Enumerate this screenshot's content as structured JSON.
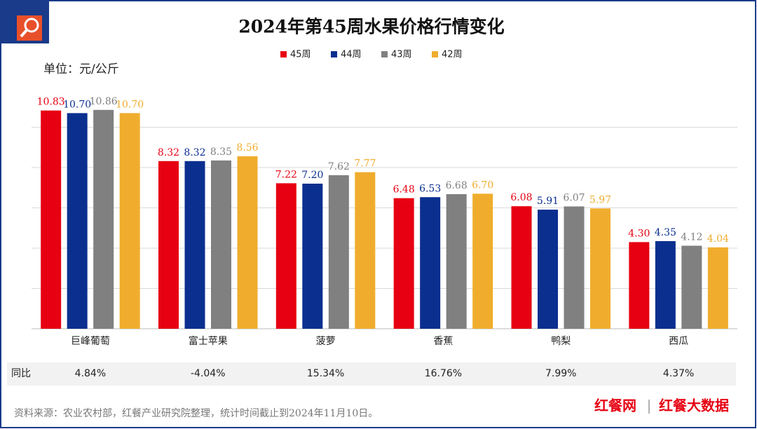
{
  "chart_data": {
    "type": "bar",
    "title": "2024年第45周水果价格行情变化",
    "unit": "单位：元/公斤",
    "categories": [
      "巨峰葡萄",
      "富士苹果",
      "菠萝",
      "香蕉",
      "鸭梨",
      "西瓜"
    ],
    "series": [
      {
        "name": "45周",
        "color": "#e60012",
        "values": [
          10.83,
          8.32,
          7.22,
          6.48,
          6.08,
          4.3
        ],
        "value_labels": [
          "10.83",
          "8.32",
          "7.22",
          "6.48",
          "6.08",
          "4.30"
        ]
      },
      {
        "name": "44周",
        "color": "#0a2f8f",
        "values": [
          10.7,
          8.32,
          7.2,
          6.53,
          5.91,
          4.35
        ],
        "value_labels": [
          "10.70",
          "8.32",
          "7.20",
          "6.53",
          "5.91",
          "4.35"
        ]
      },
      {
        "name": "43周",
        "color": "#808080",
        "values": [
          10.86,
          8.35,
          7.62,
          6.68,
          6.07,
          4.12
        ],
        "value_labels": [
          "10.86",
          "8.35",
          "7.62",
          "6.68",
          "6.07",
          "4.12"
        ]
      },
      {
        "name": "42周",
        "color": "#f0ad2d",
        "values": [
          10.7,
          8.56,
          7.77,
          6.7,
          5.97,
          4.04
        ],
        "value_labels": [
          "10.70",
          "8.56",
          "7.77",
          "6.70",
          "5.97",
          "4.04"
        ]
      }
    ],
    "ylim": [
      0,
      12
    ],
    "yticks": [
      0,
      2,
      4,
      6,
      8,
      10
    ],
    "grid": true,
    "legend": "top",
    "yoy": {
      "label": "同比",
      "values": [
        "4.84%",
        "-4.04%",
        "15.34%",
        "16.76%",
        "7.99%",
        "4.37%"
      ]
    },
    "source": "资料来源：农业农村部，红餐产业研究院整理，统计时间截止到2024年11月10日。",
    "brand": [
      "红餐网",
      "红餐大数据"
    ]
  }
}
